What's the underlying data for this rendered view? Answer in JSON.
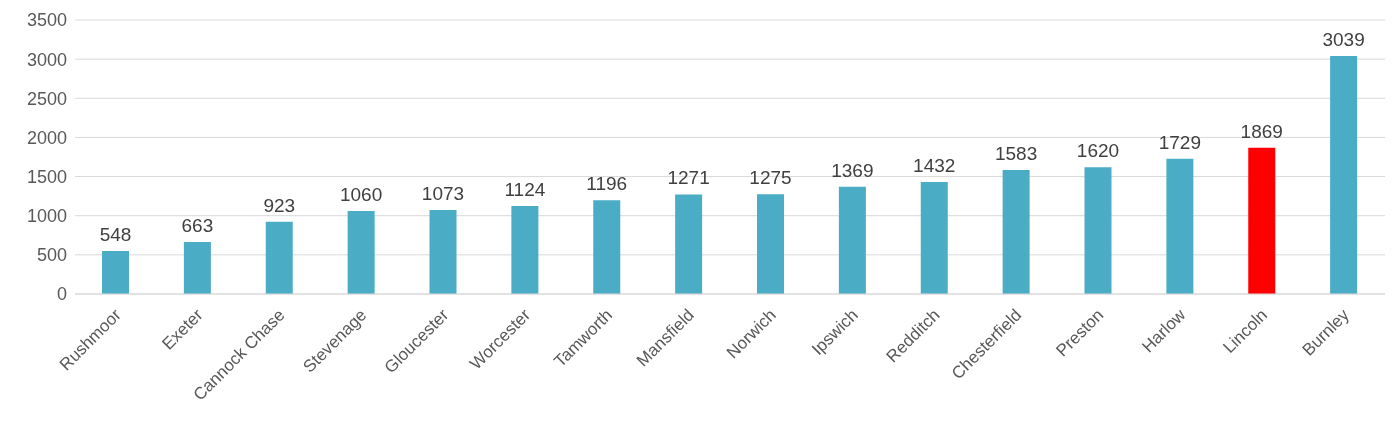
{
  "chart_data": {
    "type": "bar",
    "categories": [
      "Rushmoor",
      "Exeter",
      "Cannock Chase",
      "Stevenage",
      "Gloucester",
      "Worcester",
      "Tamworth",
      "Mansfield",
      "Norwich",
      "Ipswich",
      "Redditch",
      "Chesterfield",
      "Preston",
      "Harlow",
      "Lincoln",
      "Burnley"
    ],
    "values": [
      548,
      663,
      923,
      1060,
      1073,
      1124,
      1196,
      1271,
      1275,
      1369,
      1432,
      1583,
      1620,
      1729,
      1869,
      3039
    ],
    "colors": [
      "#4bacc6",
      "#4bacc6",
      "#4bacc6",
      "#4bacc6",
      "#4bacc6",
      "#4bacc6",
      "#4bacc6",
      "#4bacc6",
      "#4bacc6",
      "#4bacc6",
      "#4bacc6",
      "#4bacc6",
      "#4bacc6",
      "#4bacc6",
      "#ff0000",
      "#4bacc6"
    ],
    "ylim": [
      0,
      3500
    ],
    "yticks": [
      0,
      500,
      1000,
      1500,
      2000,
      2500,
      3000,
      3500
    ],
    "grid": "y",
    "data_labels": true,
    "legend": false
  }
}
